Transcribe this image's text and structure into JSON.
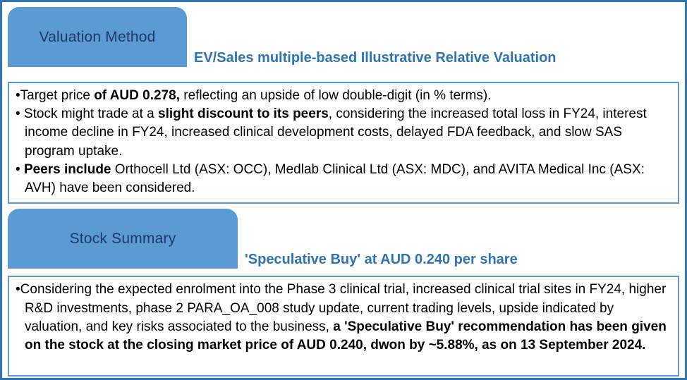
{
  "colors": {
    "outer_border": "#2E75B6",
    "tab_fill": "#5B9BD5",
    "tab_text": "#1F3864",
    "heading": "#2E74B5",
    "box_border": "#5B9BD5",
    "body_text": "#000000"
  },
  "sections": [
    {
      "tab_label": "Valuation Method",
      "heading": "EV/Sales multiple-based Illustrative Relative Valuation",
      "bullets": [
        [
          {
            "text": "•Target price ",
            "bold": false
          },
          {
            "text": "of AUD 0.278,",
            "bold": true
          },
          {
            "text": " reflecting an upside of low double-digit (in % terms).",
            "bold": false
          }
        ],
        [
          {
            "text": "• Stock might trade at a ",
            "bold": false
          },
          {
            "text": "slight discount to its peers",
            "bold": true
          },
          {
            "text": ", considering the increased total loss in FY24, interest income decline in FY24, increased clinical development costs, delayed FDA feedback, and slow SAS program uptake.",
            "bold": false
          }
        ],
        [
          {
            "text": "• ",
            "bold": false
          },
          {
            "text": "Peers include",
            "bold": true
          },
          {
            "text": " Orthocell Ltd (ASX: OCC), Medlab Clinical Ltd (ASX: MDC), and AVITA Medical Inc (ASX: AVH) have been considered.",
            "bold": false
          }
        ]
      ]
    },
    {
      "tab_label": "Stock Summary",
      "heading": "'Speculative Buy' at AUD 0.240 per share",
      "bullets": [
        [
          {
            "text": "•Considering the expected enrolment into the Phase 3 clinical trial, increased clinical trial sites in FY24, higher R&D investments, phase 2 PARA_OA_008 study update, current trading levels, upside indicated by valuation, and key risks associated to the business, ",
            "bold": false
          },
          {
            "text": "a 'Speculative Buy' recommendation has been given on the stock at the closing market price of AUD 0.240, dwon by ~5.88%, as on 13 September 2024.",
            "bold": true
          }
        ]
      ]
    }
  ]
}
